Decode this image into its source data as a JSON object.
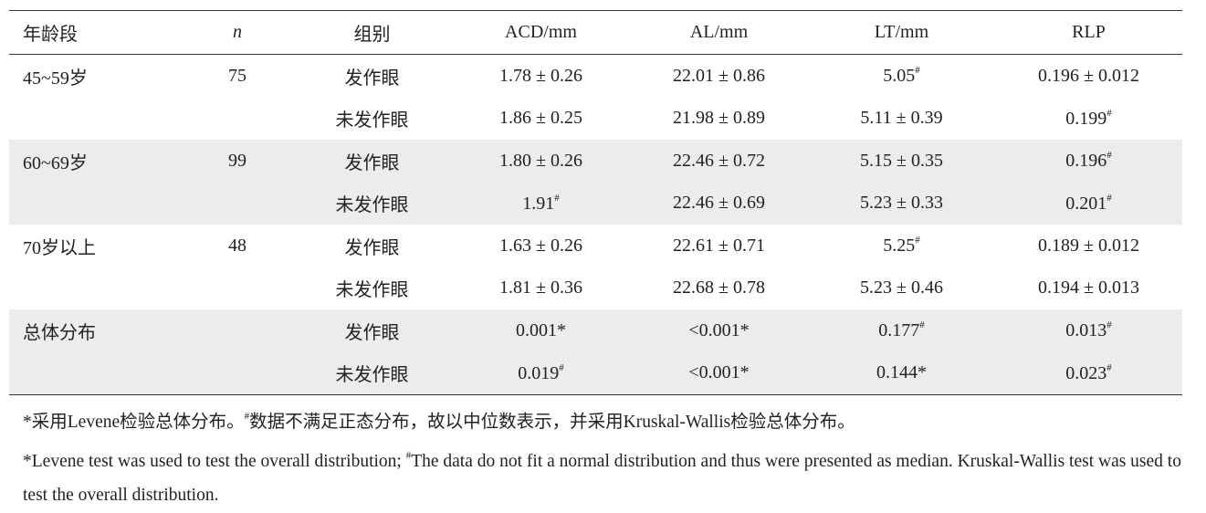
{
  "table": {
    "header": [
      "年龄段",
      "n",
      "组别",
      "ACD/mm",
      "AL/mm",
      "LT/mm",
      "RLP"
    ],
    "groups": [
      {
        "age": "45~59岁",
        "n": "75",
        "rows": [
          [
            "发作眼",
            "1.78 ± 0.26",
            "22.01 ± 0.86",
            {
              "text": "5.05",
              "sup": "#"
            },
            "0.196 ± 0.012"
          ],
          [
            "未发作眼",
            "1.86 ± 0.25",
            "21.98 ± 0.89",
            "5.11 ± 0.39",
            {
              "text": "0.199",
              "sup": "#"
            }
          ]
        ]
      },
      {
        "age": "60~69岁",
        "n": "99",
        "rows": [
          [
            "发作眼",
            "1.80 ± 0.26",
            "22.46 ± 0.72",
            "5.15 ± 0.35",
            {
              "text": "0.196",
              "sup": "#"
            }
          ],
          [
            "未发作眼",
            {
              "text": "1.91",
              "sup": "#"
            },
            "22.46 ± 0.69",
            "5.23 ± 0.33",
            {
              "text": "0.201",
              "sup": "#"
            }
          ]
        ]
      },
      {
        "age": "70岁以上",
        "n": "48",
        "rows": [
          [
            "发作眼",
            "1.63 ± 0.26",
            "22.61 ± 0.71",
            {
              "text": "5.25",
              "sup": "#"
            },
            "0.189 ± 0.012"
          ],
          [
            "未发作眼",
            "1.81 ± 0.36",
            "22.68 ± 0.78",
            "5.23 ± 0.46",
            "0.194 ± 0.013"
          ]
        ]
      },
      {
        "age": "总体分布",
        "rows": [
          [
            "发作眼",
            "0.001*",
            "<0.001*",
            {
              "text": "0.177",
              "sup": "#"
            },
            {
              "text": "0.013",
              "sup": "#"
            }
          ],
          [
            "未发作眼",
            {
              "text": "0.019",
              "sup": "#"
            },
            "<0.001*",
            "0.144*",
            {
              "text": "0.023",
              "sup": "#"
            }
          ]
        ]
      }
    ]
  },
  "notes": [
    [
      "*采用Levene检验总体分布。",
      {
        "sup": "#"
      },
      "数据不满足正态分布，故以中位数表示，并采用Kruskal-Wallis检验总体分布。"
    ],
    [
      "*Levene test was used to test the overall distribution; ",
      {
        "sup": "#"
      },
      "The data do not fit a normal distribution and thus were presented as median. Kruskal-Wallis test was used to test the overall distribution."
    ]
  ]
}
